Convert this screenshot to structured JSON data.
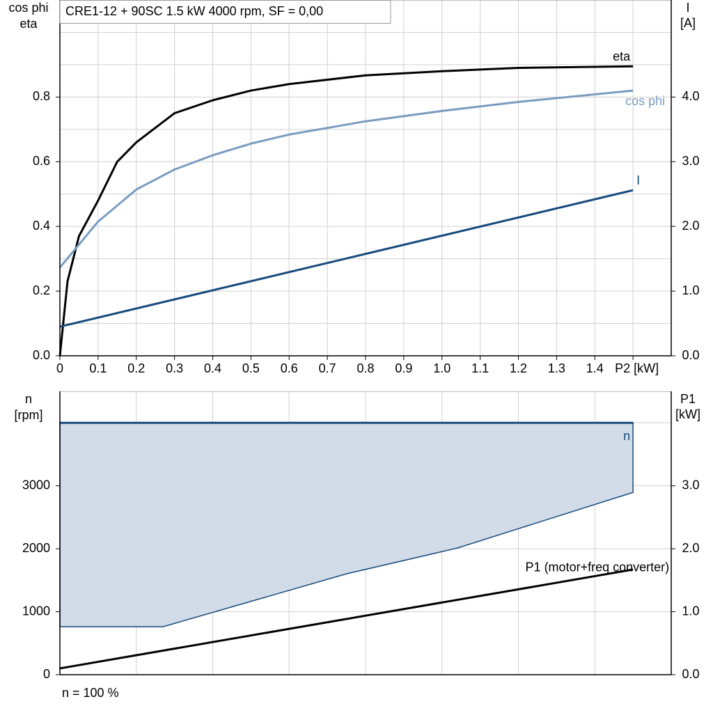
{
  "chart_data": [
    {
      "type": "line",
      "title": "CRE1-12 + 90SC   1.5 kW   4000 rpm, SF = 0,00",
      "ylabel": [
        "cos phi",
        "eta"
      ],
      "y2label": [
        "I",
        "[A]"
      ],
      "xlim": [
        0,
        1.6
      ],
      "xticks": [
        0,
        0.1,
        0.2,
        0.3,
        0.4,
        0.5,
        0.6,
        0.7,
        0.8,
        0.9,
        {
          "value": 1,
          "label": "1.0"
        },
        1.1,
        1.2,
        1.3,
        1.4,
        {
          "value": 1.5,
          "label": "P2 [kW]"
        }
      ],
      "ylim": [
        0,
        1.1
      ],
      "yticks": [
        {
          "value": 0,
          "label": "0.0"
        },
        0.2,
        0.4,
        0.6,
        0.8
      ],
      "ygrid": [
        0.1,
        0.2,
        0.3,
        0.4,
        0.5,
        0.6,
        0.7,
        0.8,
        0.9,
        1.0
      ],
      "y2lim": [
        0,
        5.5
      ],
      "y2ticks": [
        {
          "value": 0,
          "label": "0.0"
        },
        {
          "value": 1,
          "label": "1.0"
        },
        {
          "value": 2,
          "label": "2.0"
        },
        {
          "value": 3,
          "label": "3.0"
        },
        {
          "value": 4,
          "label": "4.0"
        }
      ],
      "grid": true,
      "series": [
        {
          "name": "eta",
          "color": "#000000",
          "x": [
            0,
            0.02,
            0.05,
            0.1,
            0.15,
            0.2,
            0.3,
            0.4,
            0.5,
            0.6,
            0.8,
            1.0,
            1.2,
            1.5
          ],
          "values": [
            0,
            0.23,
            0.37,
            0.48,
            0.6,
            0.66,
            0.75,
            0.79,
            0.82,
            0.84,
            0.867,
            0.88,
            0.89,
            0.895
          ]
        },
        {
          "name": "cos phi",
          "color": "#7a9cc0",
          "x": [
            0,
            0.1,
            0.2,
            0.3,
            0.4,
            0.5,
            0.6,
            0.8,
            1.0,
            1.2,
            1.5
          ],
          "values": [
            0.273,
            0.415,
            0.514,
            0.576,
            0.62,
            0.656,
            0.684,
            0.725,
            0.757,
            0.785,
            0.82
          ]
        },
        {
          "name": "I",
          "color": "#174a7c",
          "axis": "y2",
          "x": [
            0,
            0.75,
            1.5
          ],
          "values": [
            0.45,
            1.505,
            2.56
          ]
        }
      ]
    },
    {
      "type": "line",
      "ylabel": [
        "n",
        "[rpm]"
      ],
      "y2label": [
        "P1",
        "[kW]"
      ],
      "note": "n = 100 %",
      "xlim": [
        0,
        1.6
      ],
      "xgrid": [
        0.2,
        0.4,
        0.6,
        0.8,
        1.0,
        1.2,
        1.4
      ],
      "ylim": [
        0,
        4500
      ],
      "yticks": [
        0,
        1000,
        2000,
        3000
      ],
      "ygrid": [
        1000,
        2000,
        3000,
        4000
      ],
      "y2lim": [
        0,
        4.5
      ],
      "y2ticks": [
        {
          "value": 0,
          "label": "0.0"
        },
        {
          "value": 1,
          "label": "1.0"
        },
        {
          "value": 2,
          "label": "2.0"
        },
        {
          "value": 3,
          "label": "3.0"
        }
      ],
      "grid": true,
      "series": [
        {
          "name": "n",
          "color": "#174a7c",
          "fill": "#d1dce8",
          "x": [
            0,
            0.27,
            0.75,
            1.04,
            1.5
          ],
          "values": [
            4000,
            4000,
            4000,
            4000,
            4000
          ],
          "lower": [
            762,
            762,
            1602,
            2011,
            2895
          ]
        },
        {
          "name": "P1 (motor+freq converter)",
          "color": "#000000",
          "axis": "y2",
          "x": [
            0,
            1.5
          ],
          "values": [
            0.1,
            1.67
          ]
        }
      ]
    }
  ]
}
